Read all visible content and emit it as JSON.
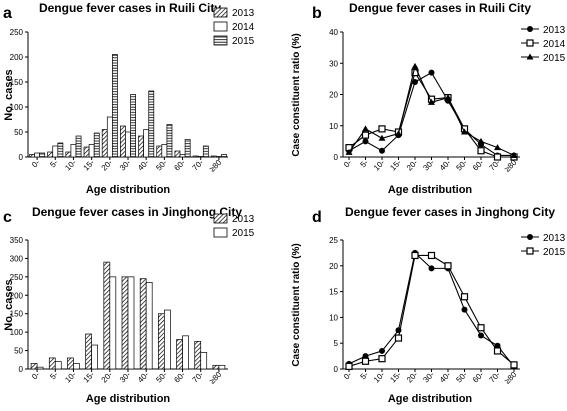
{
  "chart_data": [
    {
      "panel": "a",
      "type": "bar",
      "title": "Dengue fever cases in Ruili City",
      "xlabel": "Age distribution",
      "ylabel": "No. cases",
      "ylim": [
        0,
        250
      ],
      "yticks": [
        0,
        50,
        100,
        150,
        200,
        250
      ],
      "categories": [
        "0-",
        "5-",
        "10-",
        "15-",
        "20-",
        "30-",
        "40-",
        "50-",
        "60-",
        "70-",
        "≥80"
      ],
      "series": [
        {
          "name": "2013",
          "pattern": "hatch",
          "values": [
            5,
            10,
            10,
            20,
            55,
            62,
            42,
            22,
            12,
            2,
            2
          ]
        },
        {
          "name": "2014",
          "pattern": "white",
          "values": [
            8,
            22,
            25,
            25,
            80,
            50,
            55,
            25,
            5,
            1,
            1
          ]
        },
        {
          "name": "2015",
          "pattern": "hlines",
          "values": [
            8,
            28,
            42,
            48,
            205,
            125,
            132,
            65,
            35,
            22,
            5
          ]
        }
      ],
      "legend_position": "top-right",
      "grid": false
    },
    {
      "panel": "b",
      "type": "line",
      "title": "Dengue fever cases in Ruili City",
      "xlabel": "Age distribution",
      "ylabel": "Case constituent ratio (%)",
      "ylim": [
        0,
        40
      ],
      "yticks": [
        0,
        10,
        20,
        30,
        40
      ],
      "categories": [
        "0-",
        "5-",
        "10-",
        "15-",
        "20-",
        "30-",
        "40-",
        "50-",
        "60-",
        "70-",
        "≥80"
      ],
      "series": [
        {
          "name": "2013",
          "marker": "circle",
          "values": [
            2,
            5,
            2,
            7,
            24,
            27,
            18,
            9,
            4,
            0.5,
            0.5
          ]
        },
        {
          "name": "2014",
          "marker": "square",
          "values": [
            3,
            7,
            9,
            8,
            27,
            18.5,
            19,
            9,
            2,
            0,
            0
          ]
        },
        {
          "name": "2015",
          "marker": "triangle",
          "values": [
            1.5,
            9,
            6,
            7.5,
            29,
            17.5,
            19,
            8,
            5,
            3,
            0.5
          ]
        }
      ],
      "legend_position": "top-right",
      "grid": false
    },
    {
      "panel": "c",
      "type": "bar",
      "title": "Dengue fever cases in Jinghong City",
      "xlabel": "Age distribution",
      "ylabel": "No. cases",
      "ylim": [
        0,
        350
      ],
      "yticks": [
        0,
        50,
        100,
        150,
        200,
        250,
        300,
        350
      ],
      "categories": [
        "0-",
        "5-",
        "10-",
        "15-",
        "20-",
        "30-",
        "40-",
        "50-",
        "60-",
        "70-",
        "≥80"
      ],
      "series": [
        {
          "name": "2013",
          "pattern": "hatch",
          "values": [
            15,
            30,
            30,
            95,
            290,
            250,
            245,
            150,
            80,
            75,
            10
          ]
        },
        {
          "name": "2015",
          "pattern": "white",
          "values": [
            5,
            20,
            15,
            65,
            250,
            250,
            235,
            160,
            90,
            45,
            10
          ]
        }
      ],
      "legend_position": "top-right",
      "grid": false
    },
    {
      "panel": "d",
      "type": "line",
      "title": "Dengue fever cases in Jinghong City",
      "xlabel": "Age distribution",
      "ylabel": "Case constituent ratio (%)",
      "ylim": [
        0,
        25
      ],
      "yticks": [
        0,
        5,
        10,
        15,
        20,
        25
      ],
      "categories": [
        "0-",
        "5-",
        "10-",
        "15-",
        "20-",
        "30-",
        "40-",
        "50-",
        "60-",
        "70-",
        "≥80"
      ],
      "series": [
        {
          "name": "2013",
          "marker": "circle",
          "values": [
            1,
            2.5,
            3.5,
            7.5,
            22.5,
            19.5,
            19.5,
            11.5,
            6.5,
            4.5,
            0.5
          ]
        },
        {
          "name": "2015",
          "marker": "square",
          "values": [
            0.5,
            1.5,
            2,
            6,
            22,
            22,
            20,
            14,
            8,
            3.5,
            0.8
          ]
        }
      ],
      "legend_position": "top-right",
      "grid": false
    }
  ]
}
